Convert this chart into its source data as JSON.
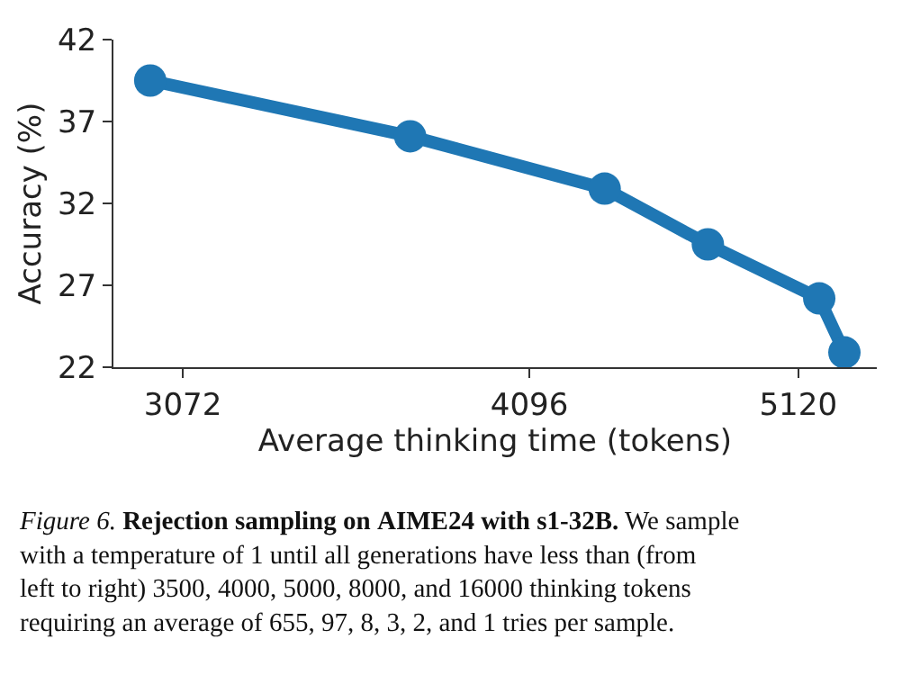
{
  "chart_data": {
    "type": "line",
    "xlabel": "Average thinking time (tokens)",
    "ylabel": "Accuracy (%)",
    "x": [
      2990,
      3710,
      4360,
      4750,
      5210,
      5320
    ],
    "series": [
      {
        "color": "#1f77b4",
        "values": [
          39.5,
          36.1,
          32.9,
          29.5,
          26.2,
          22.9
        ]
      }
    ],
    "log": "x",
    "xlim": [
      2900,
      5465
    ],
    "xticks": [
      3072,
      4096,
      5120
    ],
    "ylim": [
      22,
      42
    ],
    "yticks": [
      22,
      27,
      32,
      37,
      42
    ],
    "marker": "circle",
    "line_style": "solid",
    "legend": false,
    "annotations": [
      "Figure 6.",
      "Rejection sampling on AIME24 with s1-32B.",
      "We sample with a temperature of 1 until all generations have less than (from left to right) 3500, 4000, 5000, 8000, and 16000 thinking tokens requiring an average of 655, 97, 8, 3, 2, and 1 tries per sample."
    ]
  }
}
